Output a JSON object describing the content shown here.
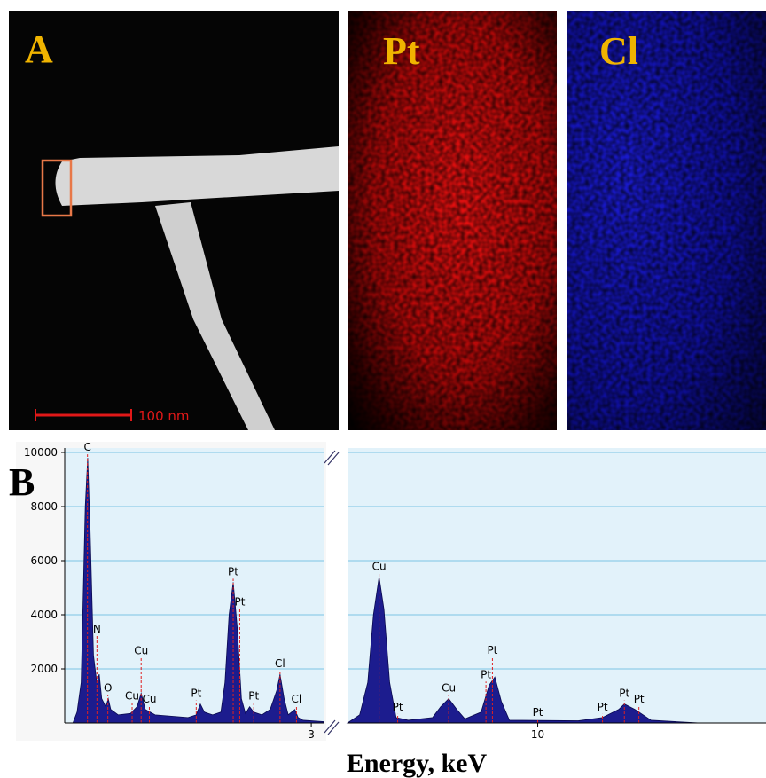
{
  "images": {
    "panel_a_label": "A",
    "pt_label": "Pt",
    "cl_label": "Cl",
    "scale_bar": "100 nm",
    "panel_b_label": "B"
  },
  "chart_data": {
    "type": "area",
    "x_label": "Energy, keV",
    "color": "#1c1c8e",
    "ylim": [
      0,
      10000
    ],
    "yticks": [
      2000,
      4000,
      6000,
      8000,
      10000
    ],
    "grid": true,
    "panels": [
      {
        "xlim": [
          0,
          3.15
        ],
        "xticks": [
          3
        ],
        "x": [
          0.1,
          0.15,
          0.2,
          0.25,
          0.28,
          0.31,
          0.35,
          0.39,
          0.42,
          0.45,
          0.5,
          0.53,
          0.56,
          0.65,
          0.8,
          0.88,
          0.93,
          0.98,
          1.1,
          1.5,
          1.6,
          1.65,
          1.7,
          1.75,
          1.8,
          1.9,
          1.95,
          2.0,
          2.05,
          2.1,
          2.15,
          2.2,
          2.25,
          2.3,
          2.4,
          2.5,
          2.58,
          2.62,
          2.67,
          2.72,
          2.8,
          2.84,
          2.9,
          3.0,
          3.15
        ],
        "values": [
          0,
          400,
          1500,
          8000,
          9800,
          7000,
          2500,
          1500,
          1800,
          900,
          600,
          900,
          500,
          300,
          350,
          600,
          1100,
          500,
          300,
          200,
          300,
          700,
          400,
          350,
          300,
          400,
          1500,
          4000,
          5200,
          3500,
          900,
          350,
          600,
          400,
          300,
          500,
          1200,
          1800,
          900,
          300,
          500,
          200,
          100,
          80,
          50
        ],
        "peaks": [
          {
            "text": "C",
            "energy": 0.277
          },
          {
            "text": "N",
            "energy": 0.392
          },
          {
            "text": "O",
            "energy": 0.525
          },
          {
            "text": "Cu",
            "energy": 0.82
          },
          {
            "text": "Cu",
            "energy": 1.03
          },
          {
            "text": "Cu",
            "energy": 0.93
          },
          {
            "text": "Pt",
            "energy": 1.6
          },
          {
            "text": "Pt",
            "energy": 2.05
          },
          {
            "text": "Pt",
            "energy": 2.13
          },
          {
            "text": "Pt",
            "energy": 2.3
          },
          {
            "text": "Cl",
            "energy": 2.62
          },
          {
            "text": "Cl",
            "energy": 2.82
          }
        ]
      },
      {
        "xlim": [
          7.65,
          12.82
        ],
        "xticks": [
          10
        ],
        "x": [
          7.65,
          7.8,
          7.9,
          7.97,
          8.04,
          8.1,
          8.17,
          8.25,
          8.4,
          8.7,
          8.8,
          8.9,
          9.0,
          9.1,
          9.3,
          9.4,
          9.47,
          9.55,
          9.65,
          10.5,
          10.8,
          11.0,
          11.07,
          11.2,
          11.3,
          11.4,
          12.0,
          12.82
        ],
        "values": [
          0,
          300,
          1500,
          4000,
          5400,
          4200,
          1500,
          200,
          100,
          200,
          600,
          900,
          500,
          150,
          400,
          1400,
          1700,
          800,
          100,
          80,
          200,
          500,
          700,
          500,
          300,
          100,
          0,
          0
        ],
        "peaks": [
          {
            "text": "Cu",
            "energy": 8.04
          },
          {
            "text": "Pt",
            "energy": 8.27
          },
          {
            "text": "Cu",
            "energy": 8.9
          },
          {
            "text": "Pt",
            "energy": 9.36
          },
          {
            "text": "Pt",
            "energy": 9.44
          },
          {
            "text": "Pt",
            "energy": 10.0
          },
          {
            "text": "Pt",
            "energy": 10.8
          },
          {
            "text": "Pt",
            "energy": 11.07
          },
          {
            "text": "Pt",
            "energy": 11.25
          }
        ]
      }
    ]
  }
}
